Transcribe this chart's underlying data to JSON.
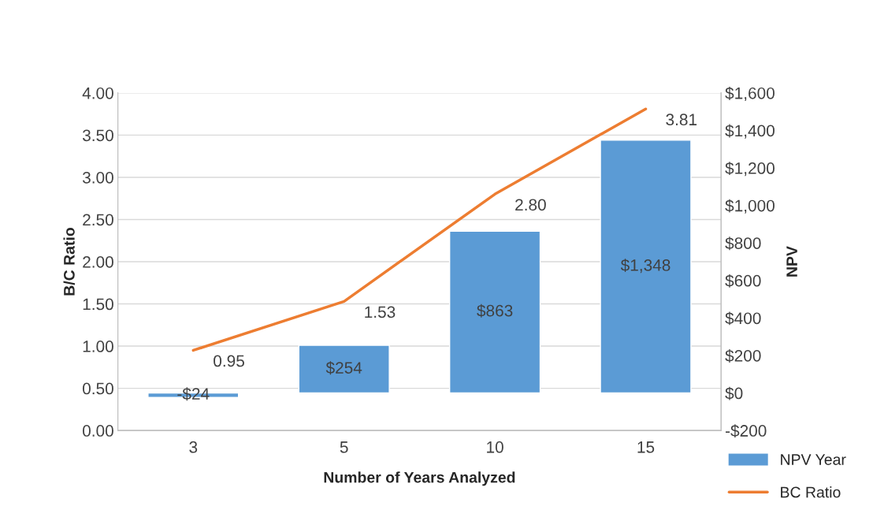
{
  "chart_data": {
    "type": "bar",
    "xlabel": "Number of Years Analyzed",
    "ylabel": "B/C Ratio",
    "y2label": "NPV",
    "categories": [
      "3",
      "5",
      "10",
      "15"
    ],
    "series": [
      {
        "name": "NPV Year",
        "axis": "y2",
        "color": "#5b9bd5",
        "values": [
          -24,
          254,
          863,
          1348
        ],
        "value_labels": [
          "-$24",
          "$254",
          "$863",
          "$1,348"
        ]
      },
      {
        "name": "BC Ratio",
        "type": "line",
        "axis": "y",
        "color": "#ed7d31",
        "values": [
          0.95,
          1.53,
          2.8,
          3.81
        ],
        "value_labels": [
          "0.95",
          "1.53",
          "2.80",
          "3.81"
        ]
      }
    ],
    "ylim": [
      0,
      4
    ],
    "yticks": [
      {
        "value": 0,
        "label": "0.00"
      },
      {
        "value": 0.5,
        "label": "0.50"
      },
      {
        "value": 1,
        "label": "1.00"
      },
      {
        "value": 1.5,
        "label": "1.50"
      },
      {
        "value": 2,
        "label": "2.00"
      },
      {
        "value": 2.5,
        "label": "2.50"
      },
      {
        "value": 3,
        "label": "3.00"
      },
      {
        "value": 3.5,
        "label": "3.50"
      },
      {
        "value": 4,
        "label": "4.00"
      }
    ],
    "y2lim": [
      -200,
      1600
    ],
    "y2ticks": [
      {
        "value": -200,
        "label": "-$200"
      },
      {
        "value": 0,
        "label": "$0"
      },
      {
        "value": 200,
        "label": "$200"
      },
      {
        "value": 400,
        "label": "$400"
      },
      {
        "value": 600,
        "label": "$600"
      },
      {
        "value": 800,
        "label": "$800"
      },
      {
        "value": 1000,
        "label": "$1,000"
      },
      {
        "value": 1200,
        "label": "$1,200"
      },
      {
        "value": 1400,
        "label": "$1,400"
      },
      {
        "value": 1600,
        "label": "$1,600"
      }
    ],
    "grid": "y",
    "legend": "bottom right",
    "marker": "none",
    "line_style": "solid"
  }
}
